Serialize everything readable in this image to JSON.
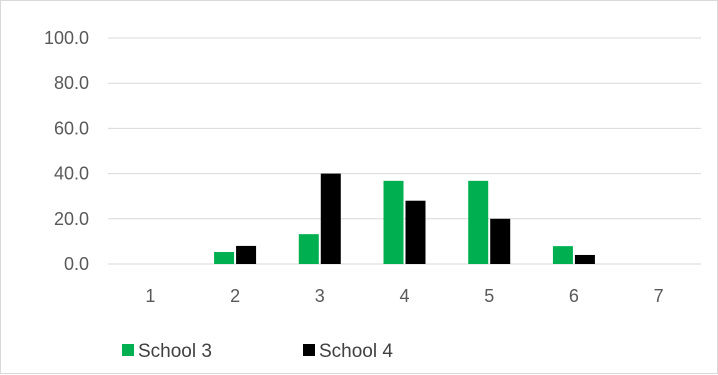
{
  "chart_data": {
    "type": "bar",
    "categories": [
      "1",
      "2",
      "3",
      "4",
      "5",
      "6",
      "7"
    ],
    "series": [
      {
        "name": "School 3",
        "values": [
          0,
          5.3,
          13.2,
          36.8,
          36.8,
          7.9,
          0
        ],
        "color": "#00b050"
      },
      {
        "name": "School 4",
        "values": [
          0,
          8.0,
          40.0,
          28.0,
          20.0,
          4.0,
          0
        ],
        "color": "#000000"
      }
    ],
    "yticks": [
      "0.0",
      "20.0",
      "40.0",
      "60.0",
      "80.0",
      "100.0"
    ],
    "ylim": [
      0,
      100
    ],
    "title": "",
    "xlabel": "",
    "ylabel": "",
    "grid": true,
    "gridline_color": "#d9d9d9",
    "legend_position": "bottom-left"
  }
}
